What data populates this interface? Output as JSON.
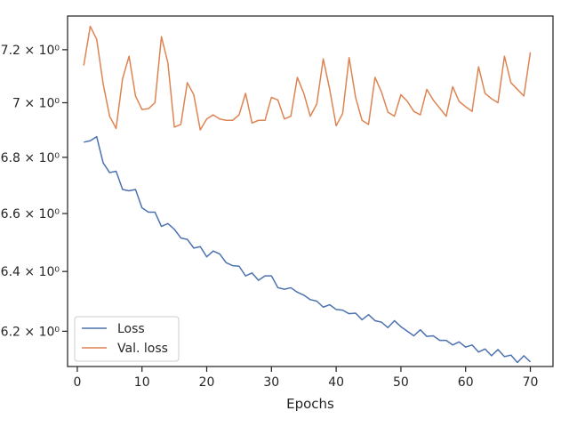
{
  "chart_data": {
    "type": "line",
    "title": "",
    "xlabel": "Epochs",
    "ylabel": "",
    "yscale": "log",
    "grid": false,
    "legend": "lower-left",
    "xlim": [
      -1.5,
      73.5
    ],
    "ylim": [
      6.085,
      7.33
    ],
    "xticks": [
      0,
      10,
      20,
      30,
      40,
      50,
      60,
      70
    ],
    "yticks": [
      {
        "value": 6.2,
        "label": "6.2 × 10⁰"
      },
      {
        "value": 6.4,
        "label": "6.4 × 10⁰"
      },
      {
        "value": 6.6,
        "label": "6.6 × 10⁰"
      },
      {
        "value": 6.8,
        "label": "6.8 × 10⁰"
      },
      {
        "value": 7.0,
        "label": "7 × 10⁰"
      },
      {
        "value": 7.2,
        "label": "7.2 × 10⁰"
      }
    ],
    "x": [
      1,
      2,
      3,
      4,
      5,
      6,
      7,
      8,
      9,
      10,
      11,
      12,
      13,
      14,
      15,
      16,
      17,
      18,
      19,
      20,
      21,
      22,
      23,
      24,
      25,
      26,
      27,
      28,
      29,
      30,
      31,
      32,
      33,
      34,
      35,
      36,
      37,
      38,
      39,
      40,
      41,
      42,
      43,
      44,
      45,
      46,
      47,
      48,
      49,
      50,
      51,
      52,
      53,
      54,
      55,
      56,
      57,
      58,
      59,
      60,
      61,
      62,
      63,
      64,
      65,
      66,
      67,
      68,
      69,
      70
    ],
    "series": [
      {
        "name": "Loss",
        "color": "#4c72b0",
        "values": [
          6.855,
          6.86,
          6.875,
          6.78,
          6.745,
          6.75,
          6.685,
          6.68,
          6.685,
          6.62,
          6.605,
          6.605,
          6.555,
          6.565,
          6.545,
          6.515,
          6.51,
          6.48,
          6.485,
          6.45,
          6.47,
          6.46,
          6.43,
          6.42,
          6.418,
          6.385,
          6.395,
          6.37,
          6.385,
          6.385,
          6.345,
          6.34,
          6.345,
          6.33,
          6.32,
          6.305,
          6.3,
          6.28,
          6.288,
          6.272,
          6.27,
          6.258,
          6.26,
          6.238,
          6.255,
          6.235,
          6.23,
          6.212,
          6.235,
          6.215,
          6.2,
          6.185,
          6.205,
          6.183,
          6.185,
          6.17,
          6.17,
          6.155,
          6.165,
          6.148,
          6.155,
          6.132,
          6.142,
          6.12,
          6.14,
          6.117,
          6.122,
          6.098,
          6.12,
          6.1
        ]
      },
      {
        "name": "Val. loss",
        "color": "#dd8452",
        "values": [
          7.14,
          7.29,
          7.24,
          7.07,
          6.95,
          6.905,
          7.09,
          7.175,
          7.025,
          6.975,
          6.978,
          7.0,
          7.25,
          7.15,
          6.91,
          6.92,
          7.075,
          7.03,
          6.9,
          6.94,
          6.955,
          6.94,
          6.935,
          6.935,
          6.955,
          7.035,
          6.925,
          6.935,
          6.935,
          7.02,
          7.01,
          6.94,
          6.95,
          7.095,
          7.035,
          6.95,
          6.995,
          7.165,
          7.05,
          6.915,
          6.96,
          7.17,
          7.02,
          6.935,
          6.92,
          7.095,
          7.04,
          6.965,
          6.95,
          7.03,
          7.005,
          6.968,
          6.955,
          7.05,
          7.01,
          6.98,
          6.95,
          7.06,
          7.005,
          6.985,
          6.968,
          7.135,
          7.035,
          7.015,
          7.0,
          7.175,
          7.075,
          7.05,
          7.025,
          7.19
        ]
      }
    ]
  }
}
